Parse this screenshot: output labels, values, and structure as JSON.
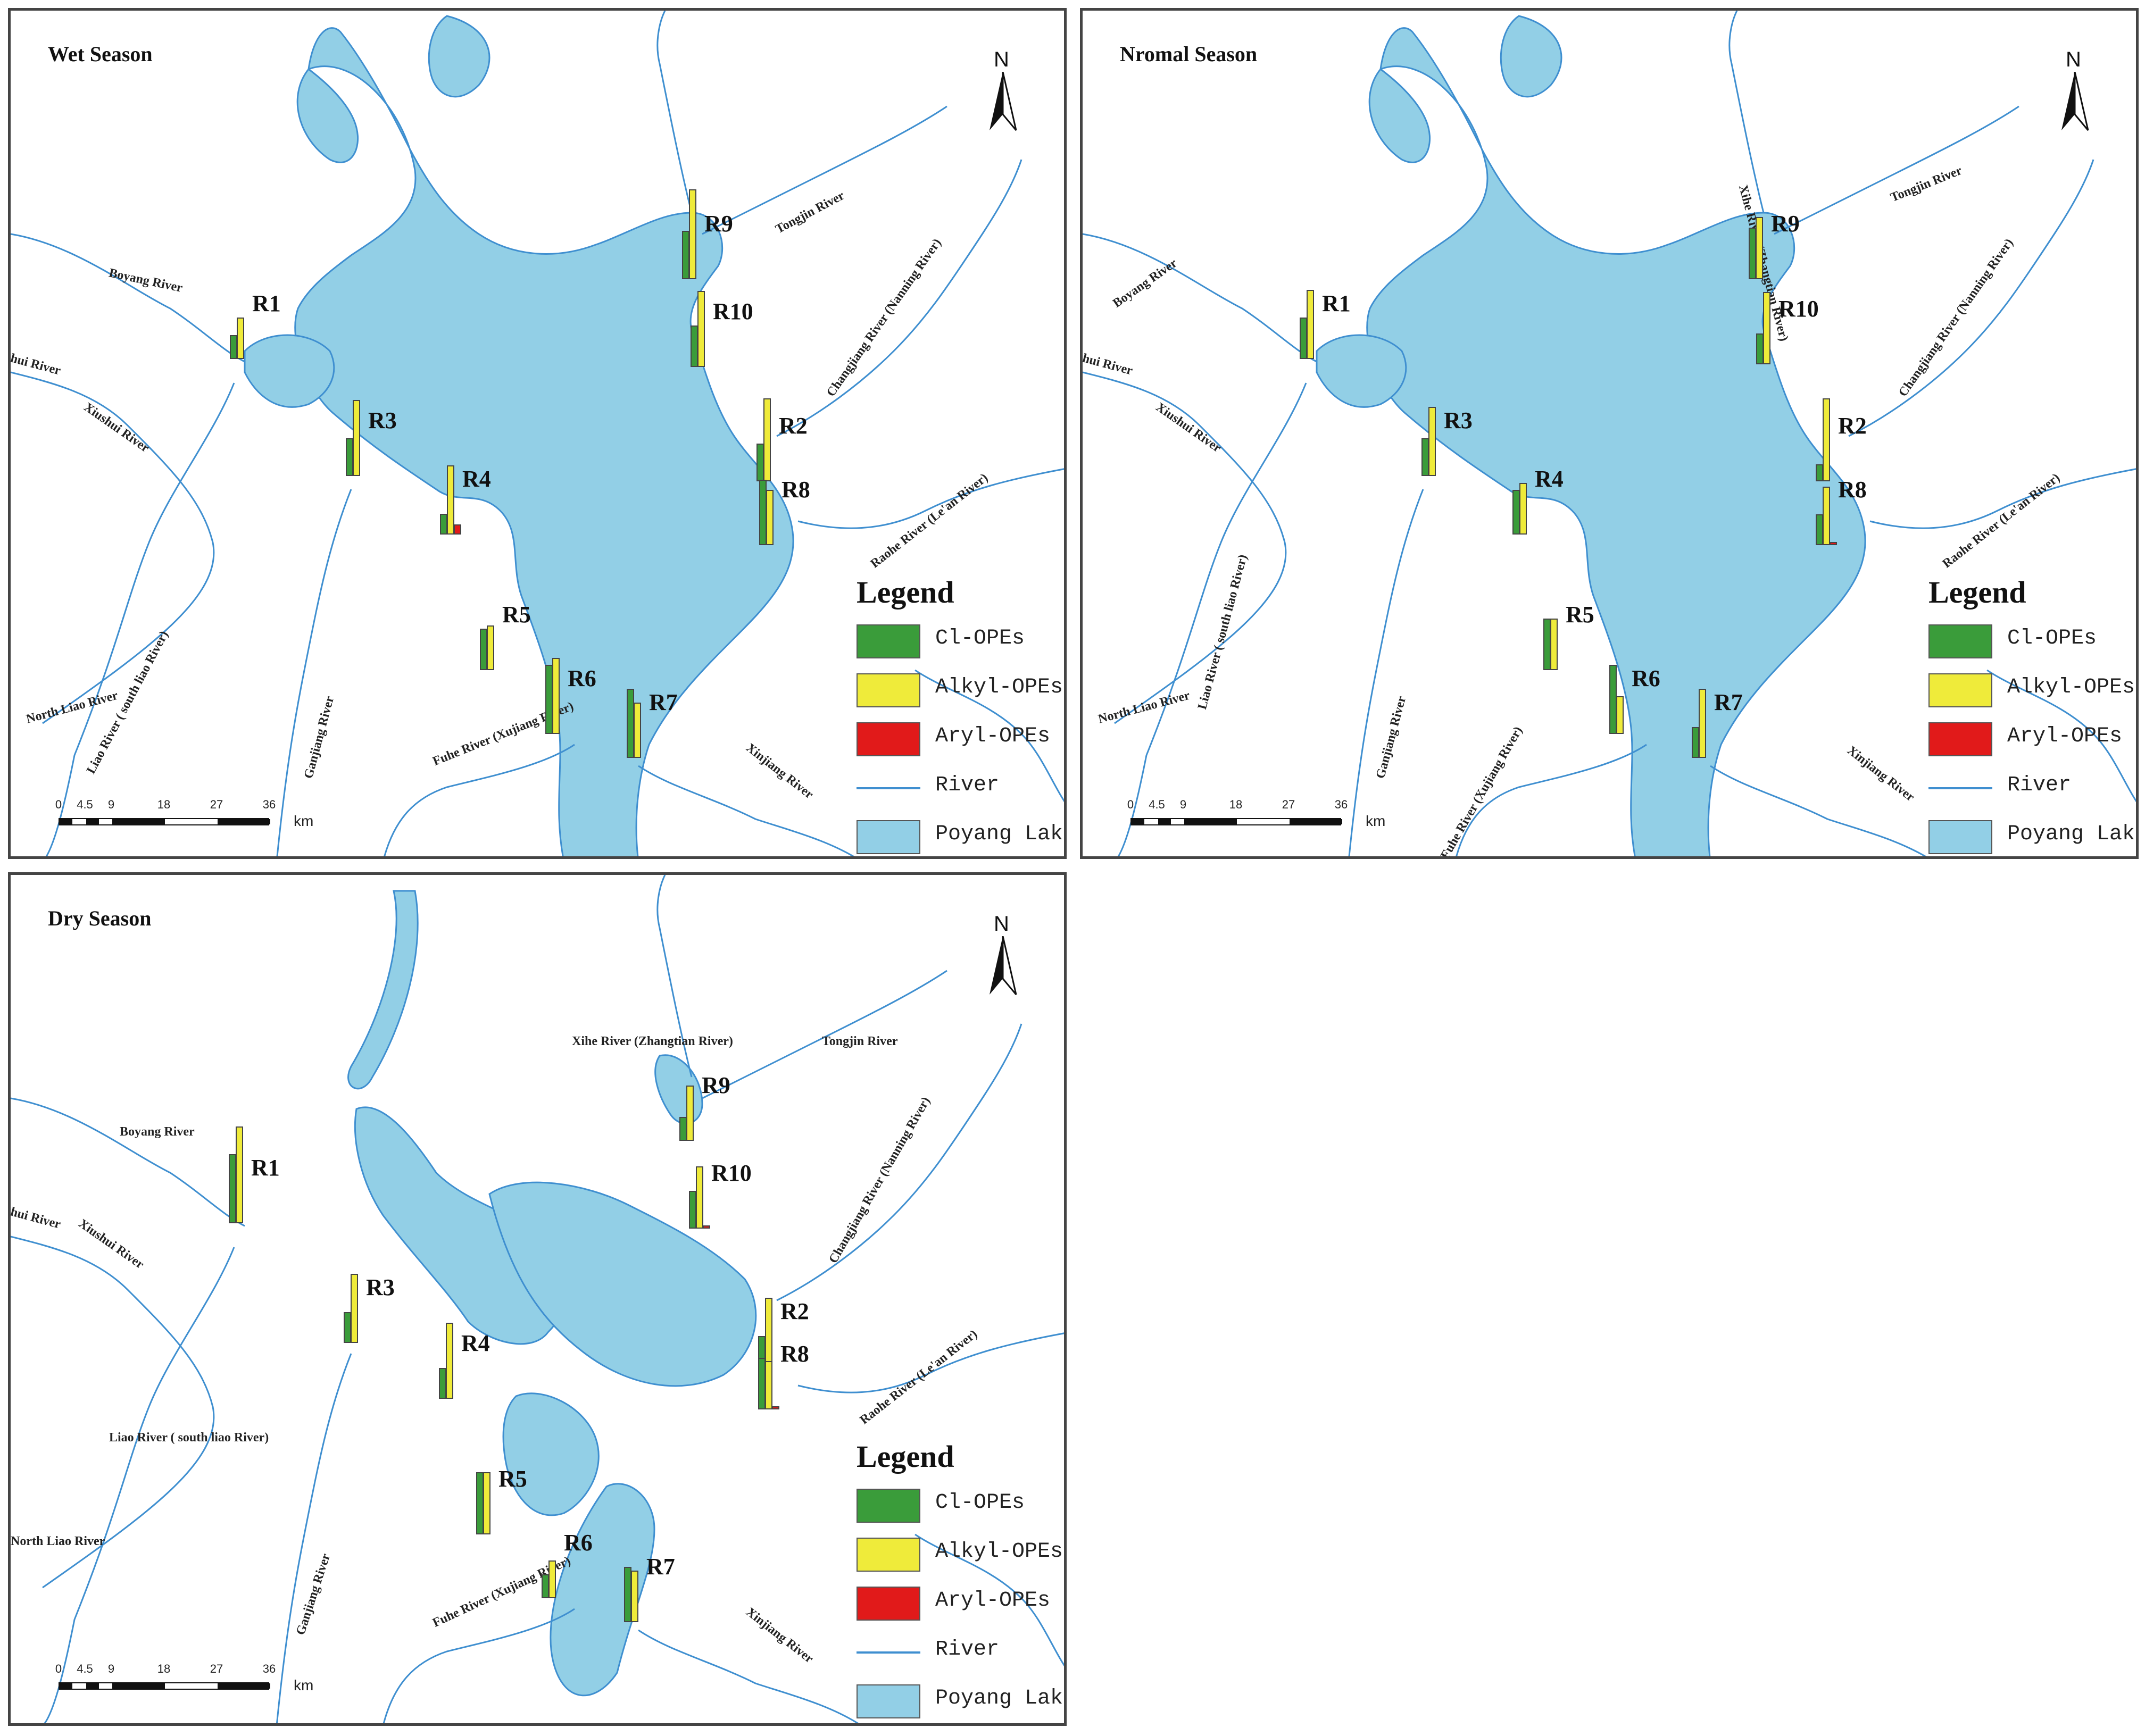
{
  "colors": {
    "lake": "#92cfe6",
    "river": "#3f8fd0",
    "cl_opes": "#3a9c3a",
    "alkyl_opes": "#efeb3a",
    "aryl_opes": "#e11a1a",
    "border": "#444444"
  },
  "north_label": "N",
  "scale": {
    "ticks": [
      "0",
      "4.5",
      "9",
      "18",
      "27",
      "36"
    ],
    "unit": "km"
  },
  "legend": {
    "title": "Legend",
    "items": [
      {
        "label": "Cl-OPEs",
        "kind": "box",
        "color": "#3a9c3a"
      },
      {
        "label": "Alkyl-OPEs",
        "kind": "box",
        "color": "#efeb3a"
      },
      {
        "label": "Aryl-OPEs",
        "kind": "box",
        "color": "#e11a1a"
      },
      {
        "label": "River",
        "kind": "line",
        "color": "#3f8fd0"
      },
      {
        "label": "Poyang Lake",
        "kind": "box",
        "color": "#92cfe6"
      }
    ]
  },
  "panels": [
    {
      "title": "Wet Season",
      "rivers": [
        "Boyang River",
        "hui River",
        "Xiushui River",
        "North Liao River",
        "Liao River ( south liao River)",
        "Ganjiang River",
        "Fuhe River (Xujiang River)",
        "Tongjin River",
        "Changjiang River (Nanning River)",
        "Raohe River (Le'an River)",
        "Xinjiang River"
      ],
      "sites": [
        {
          "label": "R1",
          "cl": 0.35,
          "alkyl": 0.6,
          "aryl": 0.0
        },
        {
          "label": "R2",
          "cl": 0.55,
          "alkyl": 1.2,
          "aryl": 0.0
        },
        {
          "label": "R3",
          "cl": 0.55,
          "alkyl": 1.1,
          "aryl": 0.0
        },
        {
          "label": "R4",
          "cl": 0.3,
          "alkyl": 1.0,
          "aryl": 0.15
        },
        {
          "label": "R5",
          "cl": 0.6,
          "alkyl": 0.65,
          "aryl": 0.0
        },
        {
          "label": "R6",
          "cl": 1.0,
          "alkyl": 1.1,
          "aryl": 0.0
        },
        {
          "label": "R7",
          "cl": 1.0,
          "alkyl": 0.8,
          "aryl": 0.0
        },
        {
          "label": "R8",
          "cl": 0.95,
          "alkyl": 0.8,
          "aryl": 0.0
        },
        {
          "label": "R9",
          "cl": 0.7,
          "alkyl": 1.3,
          "aryl": 0.0
        },
        {
          "label": "R10",
          "cl": 0.6,
          "alkyl": 1.1,
          "aryl": 0.0
        }
      ]
    },
    {
      "title": "Nromal Season",
      "rivers": [
        "Boyang River",
        "hui River",
        "Xiushui River",
        "North Liao River",
        "Liao River ( south liao River)",
        "Ganjiang River",
        "Fuhe River (Xujiang River)",
        "Xihe River (Zhangtian River)",
        "Tongjin River",
        "Changjiang River (Nanning River)",
        "Raohe River (Le'an River)",
        "Xinjiang River"
      ],
      "sites": [
        {
          "label": "R1",
          "cl": 0.6,
          "alkyl": 1.0,
          "aryl": 0.0
        },
        {
          "label": "R2",
          "cl": 0.25,
          "alkyl": 1.2,
          "aryl": 0.0
        },
        {
          "label": "R3",
          "cl": 0.55,
          "alkyl": 1.0,
          "aryl": 0.0
        },
        {
          "label": "R4",
          "cl": 0.65,
          "alkyl": 0.75,
          "aryl": 0.0
        },
        {
          "label": "R5",
          "cl": 0.75,
          "alkyl": 0.75,
          "aryl": 0.0
        },
        {
          "label": "R6",
          "cl": 1.0,
          "alkyl": 0.55,
          "aryl": 0.0
        },
        {
          "label": "R7",
          "cl": 0.45,
          "alkyl": 1.0,
          "aryl": 0.0
        },
        {
          "label": "R8",
          "cl": 0.45,
          "alkyl": 0.85,
          "aryl": 0.05
        },
        {
          "label": "R9",
          "cl": 0.75,
          "alkyl": 0.9,
          "aryl": 0.0
        },
        {
          "label": "R10",
          "cl": 0.45,
          "alkyl": 1.05,
          "aryl": 0.0
        }
      ]
    },
    {
      "title": "Dry Season",
      "rivers": [
        "Boyang River",
        "hui River",
        "Xiushui River",
        "North Liao River",
        "Liao River ( south liao River)",
        "Ganjiang River",
        "Fuhe River (Xujiang River)",
        "Xihe River (Zhangtian River)",
        "Tongjin River",
        "Changjiang River (Nanning River)",
        "Raohe River (Le'an River)",
        "Xinjiang River"
      ],
      "sites": [
        {
          "label": "R1",
          "cl": 1.0,
          "alkyl": 1.4,
          "aryl": 0.0
        },
        {
          "label": "R2",
          "cl": 0.45,
          "alkyl": 1.0,
          "aryl": 0.0
        },
        {
          "label": "R3",
          "cl": 0.45,
          "alkyl": 1.0,
          "aryl": 0.0
        },
        {
          "label": "R4",
          "cl": 0.45,
          "alkyl": 1.1,
          "aryl": 0.0
        },
        {
          "label": "R5",
          "cl": 0.9,
          "alkyl": 0.9,
          "aryl": 0.0
        },
        {
          "label": "R6",
          "cl": 0.35,
          "alkyl": 0.55,
          "aryl": 0.0
        },
        {
          "label": "R7",
          "cl": 0.8,
          "alkyl": 0.75,
          "aryl": 0.0
        },
        {
          "label": "R8",
          "cl": 0.75,
          "alkyl": 0.7,
          "aryl": 0.05
        },
        {
          "label": "R9",
          "cl": 0.35,
          "alkyl": 0.8,
          "aryl": 0.0
        },
        {
          "label": "R10",
          "cl": 0.55,
          "alkyl": 0.9,
          "aryl": 0.05
        }
      ]
    }
  ]
}
